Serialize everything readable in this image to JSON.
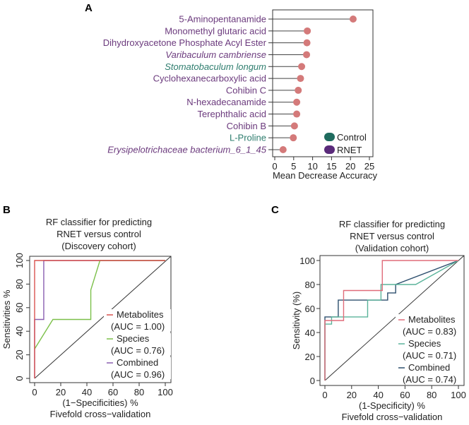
{
  "chart_data": [
    {
      "panel": "A",
      "type": "lollipop",
      "xlabel": "Mean Decrease Accuracy",
      "xlim": [
        0,
        25
      ],
      "xticks": [
        0,
        5,
        10,
        15,
        20,
        25
      ],
      "categories": [
        {
          "label": "5-Aminopentanamide",
          "value": 20.7,
          "group": "RNET",
          "italic": false
        },
        {
          "label": "Monomethyl glutaric acid",
          "value": 8.6,
          "group": "RNET",
          "italic": false
        },
        {
          "label": "Dihydroxyacetone Phosphate Acyl Ester",
          "value": 8.5,
          "group": "RNET",
          "italic": false
        },
        {
          "label": "Varibaculum cambriense",
          "value": 8.4,
          "group": "RNET",
          "italic": true
        },
        {
          "label": "Stomatobaculum longum",
          "value": 7.1,
          "group": "Control",
          "italic": true
        },
        {
          "label": "Cyclohexanecarboxylic acid",
          "value": 6.8,
          "group": "RNET",
          "italic": false
        },
        {
          "label": "Cohibin C",
          "value": 6.2,
          "group": "RNET",
          "italic": false
        },
        {
          "label": "N-hexadecanamide",
          "value": 5.8,
          "group": "RNET",
          "italic": false
        },
        {
          "label": "Terephthalic acid",
          "value": 5.8,
          "group": "RNET",
          "italic": false
        },
        {
          "label": "Cohibin B",
          "value": 5.2,
          "group": "RNET",
          "italic": false
        },
        {
          "label": "L-Proline",
          "value": 4.9,
          "group": "Control",
          "italic": false
        },
        {
          "label": "Erysipelotrichaceae bacterium_6_1_45",
          "value": 2.2,
          "group": "RNET",
          "italic": true
        }
      ],
      "legend": [
        {
          "name": "Control",
          "color": "#1f6b5e",
          "text_color": "#2e7d6e"
        },
        {
          "name": "RNET",
          "color": "#5a2a7a",
          "text_color": "#6b3a7d"
        }
      ],
      "point_color": "#d47a7a",
      "legend_placement": "bottom-right"
    },
    {
      "panel": "B",
      "type": "line",
      "title": [
        "RF classifier for predicting",
        "RNET versus control",
        "(Discovery cohort)"
      ],
      "xlabel": [
        "(1−Specificities) %",
        "Fivefold cross−validation"
      ],
      "ylabel": "Sensitivities %",
      "xlim": [
        0,
        100
      ],
      "ylim": [
        0,
        100
      ],
      "ticks": [
        0,
        20,
        40,
        60,
        80,
        100
      ],
      "series": [
        {
          "name": "Metabolites",
          "auc": "(AUC = 1.00)",
          "color": "#d9534f",
          "points": [
            [
              0,
              0
            ],
            [
              0,
              100
            ],
            [
              100,
              100
            ]
          ]
        },
        {
          "name": "Species",
          "auc": "(AUC = 0.76)",
          "color": "#7cc04a",
          "points": [
            [
              0,
              25
            ],
            [
              14,
              50
            ],
            [
              43,
              50
            ],
            [
              43,
              75
            ],
            [
              50,
              100
            ],
            [
              100,
              100
            ]
          ]
        },
        {
          "name": "Combined",
          "auc": "(AUC = 0.96)",
          "color": "#8a5fb0",
          "points": [
            [
              0,
              0
            ],
            [
              0,
              50
            ],
            [
              7,
              50
            ],
            [
              7,
              100
            ],
            [
              100,
              100
            ]
          ]
        }
      ],
      "legend_placement": "bottom-right"
    },
    {
      "panel": "C",
      "type": "line",
      "title": [
        "RF classifier for predicting",
        "RNET versus control",
        "(Validation cohort)"
      ],
      "xlabel": [
        "(1-Specificity) %",
        "Fivefold cross−validation"
      ],
      "ylabel": "Sensitivity (%)",
      "xlim": [
        0,
        100
      ],
      "ylim": [
        0,
        100
      ],
      "ticks": [
        0,
        20,
        40,
        60,
        80,
        100
      ],
      "series": [
        {
          "name": "Metabolites",
          "auc": "(AUC = 0.83)",
          "color": "#e06c7a",
          "points": [
            [
              0,
              0
            ],
            [
              0,
              50
            ],
            [
              14,
              50
            ],
            [
              14,
              75
            ],
            [
              43,
              75
            ],
            [
              43,
              100
            ],
            [
              100,
              100
            ]
          ]
        },
        {
          "name": "Species",
          "auc": "(AUC = 0.71)",
          "color": "#5ab39a",
          "points": [
            [
              0,
              0
            ],
            [
              0,
              47
            ],
            [
              5,
              47
            ],
            [
              5,
              53
            ],
            [
              32,
              53
            ],
            [
              32,
              67
            ],
            [
              42,
              67
            ],
            [
              42,
              80
            ],
            [
              68,
              80
            ],
            [
              100,
              100
            ]
          ]
        },
        {
          "name": "Combined",
          "auc": "(AUC = 0.74)",
          "color": "#2d4f6e",
          "points": [
            [
              0,
              0
            ],
            [
              0,
              53
            ],
            [
              10,
              53
            ],
            [
              10,
              67
            ],
            [
              47,
              67
            ],
            [
              47,
              73
            ],
            [
              53,
              73
            ],
            [
              53,
              80
            ],
            [
              100,
              100
            ]
          ]
        }
      ],
      "legend_placement": "bottom-right"
    }
  ]
}
